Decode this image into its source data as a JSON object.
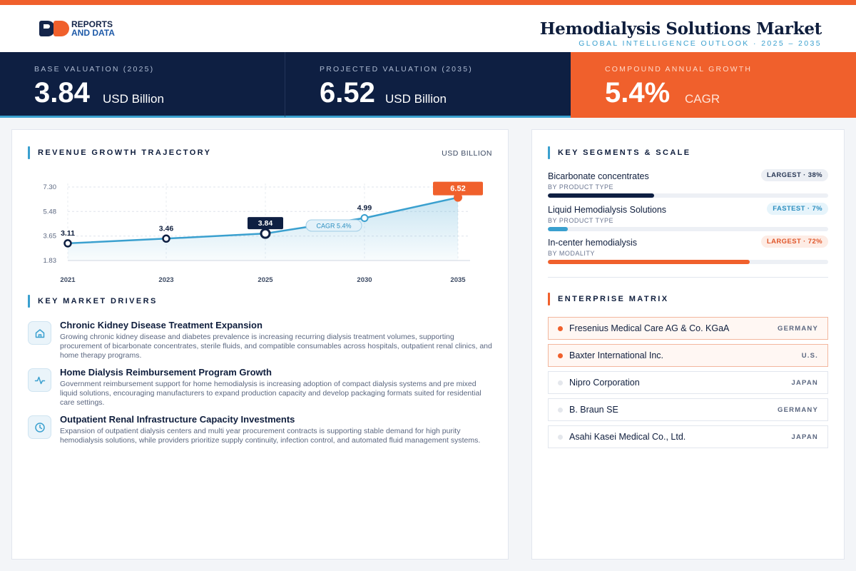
{
  "header": {
    "brand_line1": "REPORTS",
    "brand_line2": "AND DATA",
    "title": "Hemodialysis Solutions Market",
    "subtitle": "GLOBAL INTELLIGENCE OUTLOOK · 2025 – 2035"
  },
  "stats": [
    {
      "label": "BASE VALUATION (2025)",
      "value": "3.84",
      "unit": "USD Billion"
    },
    {
      "label": "PROJECTED VALUATION (2035)",
      "value": "6.52",
      "unit": "USD Billion"
    },
    {
      "label": "COMPOUND ANNUAL GROWTH",
      "value": "5.4%",
      "unit": "CAGR"
    }
  ],
  "chart_section": {
    "title": "REVENUE GROWTH TRAJECTORY",
    "unit": "USD BILLION"
  },
  "chart_data": {
    "type": "area",
    "x": [
      "2021",
      "2023",
      "2025",
      "2030",
      "2035"
    ],
    "values": [
      3.11,
      3.46,
      3.84,
      4.99,
      6.52
    ],
    "data_labels": [
      "3.11",
      "3.46",
      "3.84",
      "4.99",
      "6.52"
    ],
    "yticks": [
      "7.30",
      "5.48",
      "3.65",
      "1.83"
    ],
    "ylim": [
      1.83,
      7.3
    ],
    "annotation": "CAGR 5.4%",
    "highlight_base": "2025",
    "highlight_end": "2035",
    "colors": {
      "line": "#3aa0cf",
      "base": "#0e1f42",
      "end": "#f0602c"
    },
    "grid": true
  },
  "drivers_section": {
    "title": "KEY MARKET DRIVERS"
  },
  "drivers": [
    {
      "icon": "home-icon",
      "title": "Chronic Kidney Disease Treatment Expansion",
      "desc": "Growing chronic kidney disease and diabetes prevalence is increasing recurring dialysis treatment volumes, supporting procurement of bicarbonate concentrates, sterile fluids, and compatible consumables across hospitals, outpatient renal clinics, and home therapy programs."
    },
    {
      "icon": "pulse-icon",
      "title": "Home Dialysis Reimbursement Program Growth",
      "desc": "Government reimbursement support for home hemodialysis is increasing adoption of compact dialysis systems and pre mixed liquid solutions, encouraging manufacturers to expand production capacity and develop packaging formats suited for residential care settings."
    },
    {
      "icon": "clock-icon",
      "title": "Outpatient Renal Infrastructure Capacity Investments",
      "desc": "Expansion of outpatient dialysis centers and multi year procurement contracts is supporting stable demand for high purity hemodialysis solutions, while providers prioritize supply continuity, infection control, and automated fluid management systems."
    }
  ],
  "segments_section": {
    "title": "KEY SEGMENTS & SCALE"
  },
  "segments": [
    {
      "name": "Bicarbonate concentrates",
      "category": "BY PRODUCT TYPE",
      "badge": "LARGEST · 38%",
      "share": 0.38,
      "color": "#0e1f42",
      "badge_bg": "#eceff4",
      "badge_fg": "#2b3a57"
    },
    {
      "name": "Liquid Hemodialysis Solutions",
      "category": "BY PRODUCT TYPE",
      "badge": "FASTEST · 7%",
      "share": 0.07,
      "color": "#3aa0cf",
      "badge_bg": "#e6f4fb",
      "badge_fg": "#2d8fc0"
    },
    {
      "name": "In-center hemodialysis",
      "category": "BY MODALITY",
      "badge": "LARGEST · 72%",
      "share": 0.72,
      "color": "#f0602c",
      "badge_bg": "#fdece5",
      "badge_fg": "#e0562a"
    }
  ],
  "matrix_section": {
    "title": "ENTERPRISE MATRIX"
  },
  "companies": [
    {
      "name": "Fresenius Medical Care AG & Co. KGaA",
      "country": "GERMANY",
      "highlight": true
    },
    {
      "name": "Baxter International Inc.",
      "country": "U.S.",
      "highlight": true
    },
    {
      "name": "Nipro Corporation",
      "country": "JAPAN",
      "highlight": false
    },
    {
      "name": "B. Braun SE",
      "country": "GERMANY",
      "highlight": false
    },
    {
      "name": "Asahi Kasei Medical Co., Ltd.",
      "country": "JAPAN",
      "highlight": false
    }
  ]
}
